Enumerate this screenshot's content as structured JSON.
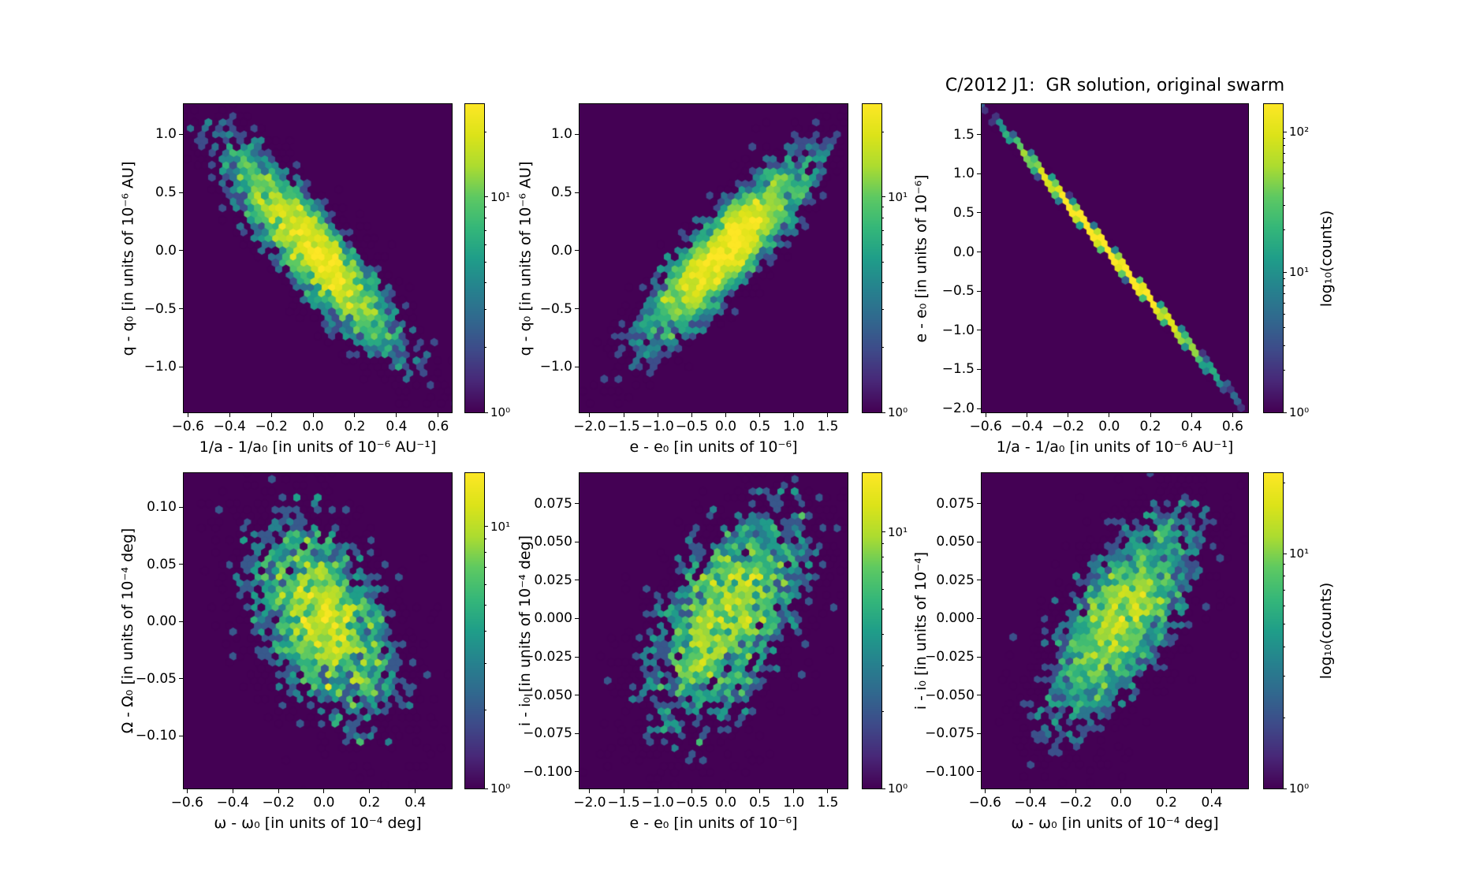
{
  "figure": {
    "title": "C/2012 J1:  GR solution, original swarm",
    "colorbar_label": "log₁₀(counts)",
    "colormap": "viridis",
    "background_color": "#ffffff",
    "hex_zero_count_color": "#440154",
    "hex_peak_color": "#fde725"
  },
  "chart_data": [
    {
      "id": "panel-top-left",
      "type": "hexbin",
      "xlabel": "1/a - 1/a₀ [in units of 10⁻⁶ AU⁻¹]",
      "ylabel": "q - q₀ [in units of 10⁻⁶ AU]",
      "xlim": [
        -0.62,
        0.665
      ],
      "ylim": [
        -1.39,
        1.26
      ],
      "xtick_values": [
        -0.6,
        -0.4,
        -0.2,
        0.0,
        0.2,
        0.4,
        0.6
      ],
      "xtick_labels": [
        "−0.6",
        "−0.4",
        "−0.2",
        "0.0",
        "0.2",
        "0.4",
        "0.6"
      ],
      "ytick_values": [
        1.0,
        0.5,
        0.0,
        -0.5,
        -1.0
      ],
      "ytick_labels": [
        "1.0",
        "0.5",
        "0.0",
        "−0.5",
        "−1.0"
      ],
      "distribution": {
        "center_x": 0,
        "center_y": 0,
        "sigma_x": 0.21,
        "sigma_y": 0.45,
        "corr": -0.88,
        "n_points": 4000,
        "seed": 101
      },
      "gridsize": 38,
      "colorbar": {
        "vmax": 27,
        "tick_values": [
          1,
          10
        ],
        "tick_labels": [
          "10⁰",
          "10¹"
        ],
        "show_label": false
      }
    },
    {
      "id": "panel-top-middle",
      "type": "hexbin",
      "xlabel": "e - e₀ [in units of 10⁻⁶]",
      "ylabel": "q - q₀ [in units of 10⁻⁶ AU]",
      "xlim": [
        -2.15,
        1.79
      ],
      "ylim": [
        -1.39,
        1.26
      ],
      "xtick_values": [
        -2.0,
        -1.5,
        -1.0,
        -0.5,
        0.0,
        0.5,
        1.0,
        1.5
      ],
      "xtick_labels": [
        "−2.0",
        "−1.5",
        "−1.0",
        "−0.5",
        "0.0",
        "0.5",
        "1.0",
        "1.5"
      ],
      "ytick_values": [
        1.0,
        0.5,
        0.0,
        -0.5,
        -1.0
      ],
      "ytick_labels": [
        "1.0",
        "0.5",
        "0.0",
        "−0.5",
        "−1.0"
      ],
      "distribution": {
        "center_x": 0,
        "center_y": 0,
        "sigma_x": 0.62,
        "sigma_y": 0.4,
        "corr": 0.87,
        "n_points": 4000,
        "seed": 202
      },
      "gridsize": 38,
      "colorbar": {
        "vmax": 27,
        "tick_values": [
          1,
          10
        ],
        "tick_labels": [
          "10⁰",
          "10¹"
        ],
        "show_label": false
      }
    },
    {
      "id": "panel-top-right",
      "type": "hexbin",
      "panel_title": "C/2012 J1:  GR solution, original swarm",
      "xlabel": "1/a - 1/a₀ [in units of 10⁻⁶ AU⁻¹]",
      "ylabel": "e - e₀ [in units of 10⁻⁶]",
      "xlim": [
        -0.62,
        0.675
      ],
      "ylim": [
        -2.05,
        1.89
      ],
      "xtick_values": [
        -0.6,
        -0.4,
        -0.2,
        0.0,
        0.2,
        0.4,
        0.6
      ],
      "xtick_labels": [
        "−0.6",
        "−0.4",
        "−0.2",
        "0.0",
        "0.2",
        "0.4",
        "0.6"
      ],
      "ytick_values": [
        1.5,
        1.0,
        0.5,
        0.0,
        -0.5,
        -1.0,
        -1.5,
        -2.0
      ],
      "ytick_labels": [
        "1.5",
        "1.0",
        "0.5",
        "0.0",
        "−0.5",
        "−1.0",
        "−1.5",
        "−2.0"
      ],
      "distribution": {
        "center_x": 0,
        "center_y": 0,
        "sigma_x": 0.2,
        "sigma_y": 0.615,
        "corr": -0.9995,
        "n_points": 8000,
        "seed": 303
      },
      "gridsize": 38,
      "colorbar": {
        "vmax": 158,
        "tick_values": [
          1,
          10,
          100
        ],
        "tick_labels": [
          "10⁰",
          "10¹",
          "10²"
        ],
        "show_label": true
      }
    },
    {
      "id": "panel-bottom-left",
      "type": "hexbin",
      "xlabel": "ω - ω₀ [in units of 10⁻⁴ deg]",
      "ylabel": "Ω - Ω₀ [in units of 10⁻⁴ deg]",
      "xlim": [
        -0.615,
        0.56
      ],
      "ylim": [
        -0.146,
        0.13
      ],
      "xtick_values": [
        -0.6,
        -0.4,
        -0.2,
        0.0,
        0.2,
        0.4
      ],
      "xtick_labels": [
        "−0.6",
        "−0.4",
        "−0.2",
        "0.0",
        "0.2",
        "0.4"
      ],
      "ytick_values": [
        0.1,
        0.05,
        0.0,
        -0.05,
        -0.1
      ],
      "ytick_labels": [
        "0.10",
        "0.05",
        "0.00",
        "−0.05",
        "−0.10"
      ],
      "distribution": {
        "center_x": 0,
        "center_y": 0,
        "sigma_x": 0.17,
        "sigma_y": 0.047,
        "corr": -0.45,
        "n_points": 3000,
        "seed": 404
      },
      "gridsize": 38,
      "colorbar": {
        "vmax": 16,
        "tick_values": [
          1,
          10
        ],
        "tick_labels": [
          "10⁰",
          "10¹"
        ],
        "show_label": false
      }
    },
    {
      "id": "panel-bottom-middle",
      "type": "hexbin",
      "xlabel": "e - e₀ [in units of 10⁻⁶]",
      "ylabel": "i - i₀ [in units of 10⁻⁴ deg]",
      "xlim": [
        -2.15,
        1.79
      ],
      "ylim": [
        -0.111,
        0.095
      ],
      "xtick_values": [
        -2.0,
        -1.5,
        -1.0,
        -0.5,
        0.0,
        0.5,
        1.0,
        1.5
      ],
      "xtick_labels": [
        "−2.0",
        "−1.5",
        "−1.0",
        "−0.5",
        "0.0",
        "0.5",
        "1.0",
        "1.5"
      ],
      "ytick_values": [
        0.075,
        0.05,
        0.025,
        0.0,
        -0.025,
        -0.05,
        -0.075,
        -0.1
      ],
      "ytick_labels": [
        "0.075",
        "0.050",
        "0.025",
        "0.000",
        "−0.025",
        "−0.050",
        "−0.075",
        "−0.100"
      ],
      "distribution": {
        "center_x": 0,
        "center_y": 0,
        "sigma_x": 0.62,
        "sigma_y": 0.038,
        "corr": 0.55,
        "n_points": 3100,
        "seed": 505
      },
      "gridsize": 38,
      "colorbar": {
        "vmax": 17,
        "tick_values": [
          1,
          10
        ],
        "tick_labels": [
          "10⁰",
          "10¹"
        ],
        "show_label": false
      }
    },
    {
      "id": "panel-bottom-right",
      "type": "hexbin",
      "xlabel": "ω - ω₀ [in units of 10⁻⁴ deg]",
      "ylabel": "i - i₀ [in units of 10⁻⁴]",
      "xlim": [
        -0.615,
        0.56
      ],
      "ylim": [
        -0.111,
        0.095
      ],
      "xtick_values": [
        -0.6,
        -0.4,
        -0.2,
        0.0,
        0.2,
        0.4
      ],
      "xtick_labels": [
        "−0.6",
        "−0.4",
        "−0.2",
        "0.0",
        "0.2",
        "0.4"
      ],
      "ytick_values": [
        0.075,
        0.05,
        0.025,
        0.0,
        -0.025,
        -0.05,
        -0.075,
        -0.1
      ],
      "ytick_labels": [
        "0.075",
        "0.050",
        "0.025",
        "0.000",
        "−0.025",
        "−0.050",
        "−0.075",
        "−0.100"
      ],
      "distribution": {
        "center_x": 0,
        "center_y": 0,
        "sigma_x": 0.17,
        "sigma_y": 0.036,
        "corr": 0.65,
        "n_points": 3100,
        "seed": 606
      },
      "gridsize": 38,
      "colorbar": {
        "vmax": 22,
        "tick_values": [
          1,
          10
        ],
        "tick_labels": [
          "10⁰",
          "10¹"
        ],
        "show_label": true
      }
    }
  ]
}
